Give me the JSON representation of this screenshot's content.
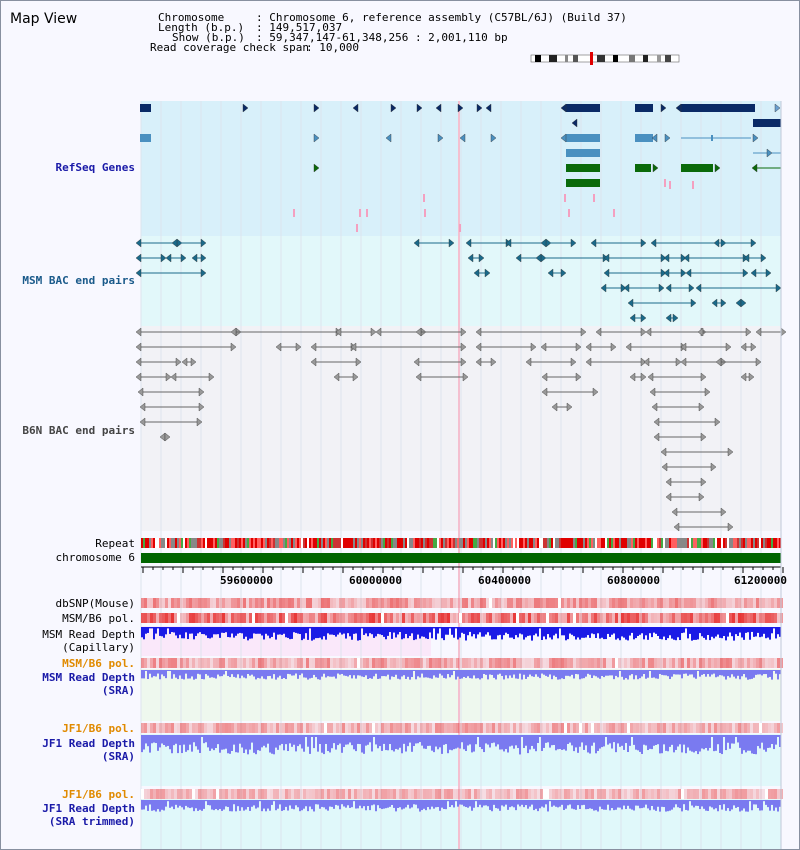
{
  "title": "Map View",
  "header": {
    "chromosome_key": "Chromosome",
    "chromosome_val": ": Chromosome 6, reference assembly (C57BL/6J) (Build 37)",
    "length_key": "Length (b.p.)",
    "length_val": ": 149,517,037",
    "show_key": "Show (b.p.)",
    "show_val": ": 59,347,147-61,348,256 : 2,001,110 bp",
    "span_key": "Read coverage check span",
    "span_val": ": 10,000"
  },
  "tracks": {
    "refseq": "RefSeq Genes",
    "msm_bac": "MSM BAC end pairs",
    "b6n_bac": "B6N BAC end pairs",
    "repeat": "Repeat",
    "chromosome": "chromosome 6",
    "dbsnp": "dbSNP(Mouse)",
    "msm_b6_pol_1": "MSM/B6 pol.",
    "msm_depth_cap_1": "MSM Read Depth",
    "msm_depth_cap_2": "(Capillary)",
    "msm_b6_pol_2": "MSM/B6 pol.",
    "msm_depth_sra_1": "MSM Read Depth",
    "msm_depth_sra_2": "(SRA)",
    "jf1_b6_pol_1": "JF1/B6 pol.",
    "jf1_depth_sra_1": "JF1 Read Depth",
    "jf1_depth_sra_2": "(SRA)",
    "jf1_b6_pol_2": "JF1/B6 pol.",
    "jf1_depth_trim_1": "JF1 Read Depth",
    "jf1_depth_trim_2": "(SRA trimmed)"
  },
  "axis": {
    "ticks": [
      "59600000",
      "60000000",
      "60400000",
      "60800000",
      "61200000"
    ]
  },
  "colors": {
    "refseq_label": "#1a1aa8",
    "msm_label": "#1a5a8a",
    "b6n_label": "#444444",
    "pol_label": "#e08a00",
    "depth_label": "#1a1aa8",
    "gene_dark": "#0a2a66",
    "gene_light": "#4a90c0",
    "gene_green": "#0a6a0a",
    "msm_bac": "#1a6a8a",
    "b6n_bac": "#666666",
    "chromosome_bar": "#006400",
    "depth_blue": "#1a1ae6",
    "depth_light": "#7a7af0"
  }
}
